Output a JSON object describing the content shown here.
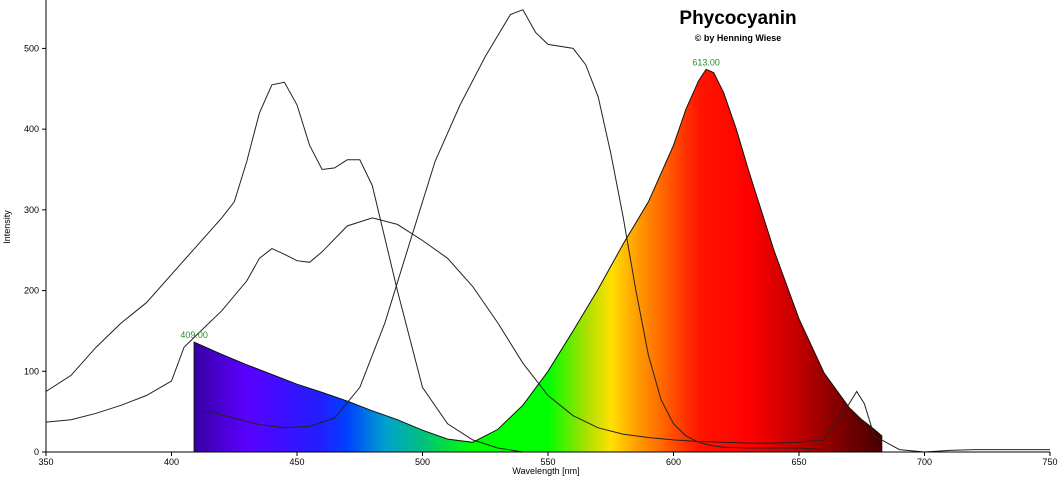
{
  "chart_data": {
    "type": "area",
    "title": "Phycocyanin",
    "subtitle": "© by Henning Wiese",
    "xlabel": "Wavelength [nm]",
    "ylabel": "Intensity",
    "xlim": [
      350,
      750
    ],
    "ylim": [
      0,
      560
    ],
    "x_ticks": [
      350,
      400,
      450,
      500,
      550,
      600,
      650,
      700,
      750
    ],
    "y_ticks": [
      0,
      100,
      200,
      300,
      400,
      500
    ],
    "grid": false,
    "annotations": [
      {
        "text": "409.00",
        "x": 409,
        "y": 136
      },
      {
        "text": "613.00",
        "x": 613,
        "y": 474
      }
    ],
    "series": [
      {
        "kind": "filled-spectrum",
        "x": [
          409,
          412,
          420,
          430,
          440,
          450,
          460,
          470,
          480,
          490,
          500,
          510,
          520,
          530,
          540,
          550,
          560,
          570,
          580,
          590,
          600,
          605,
          610,
          613,
          616,
          620,
          625,
          630,
          640,
          650,
          660,
          670,
          675,
          680,
          683
        ],
        "y": [
          136,
          132,
          121,
          108,
          96,
          84,
          74,
          63,
          51,
          40,
          27,
          16,
          12,
          28,
          58,
          100,
          150,
          202,
          258,
          310,
          380,
          425,
          460,
          474,
          470,
          445,
          400,
          348,
          250,
          165,
          98,
          55,
          40,
          28,
          20
        ]
      },
      {
        "kind": "line",
        "x": [
          350,
          360,
          370,
          380,
          390,
          400,
          410,
          420,
          425,
          430,
          435,
          440,
          445,
          450,
          455,
          460,
          465,
          470,
          475,
          480,
          490,
          500,
          510,
          520,
          530,
          540
        ],
        "y": [
          75,
          95,
          130,
          160,
          185,
          220,
          255,
          290,
          310,
          360,
          420,
          455,
          458,
          430,
          380,
          350,
          352,
          362,
          362,
          330,
          200,
          80,
          35,
          15,
          5,
          0
        ]
      },
      {
        "kind": "line",
        "x": [
          350,
          360,
          370,
          380,
          390,
          400,
          405,
          410,
          420,
          430,
          435,
          440,
          445,
          450,
          455,
          460,
          470,
          480,
          490,
          500,
          510,
          520,
          530,
          540,
          550,
          560,
          570,
          580,
          590,
          600,
          610,
          620,
          630,
          640,
          650,
          660,
          670,
          673,
          676,
          680,
          690,
          700,
          710,
          720,
          750
        ],
        "y": [
          37,
          40,
          48,
          58,
          70,
          88,
          130,
          145,
          175,
          212,
          240,
          252,
          245,
          237,
          235,
          248,
          280,
          290,
          282,
          262,
          240,
          205,
          160,
          110,
          70,
          45,
          30,
          22,
          18,
          15,
          13,
          12,
          11,
          11,
          12,
          15,
          60,
          75,
          60,
          20,
          3,
          0,
          2,
          3,
          3
        ]
      },
      {
        "kind": "line",
        "x": [
          412,
          415,
          425,
          435,
          445,
          455,
          465,
          475,
          485,
          495,
          505,
          515,
          525,
          535,
          540,
          545,
          550,
          560,
          565,
          570,
          575,
          580,
          585,
          590,
          595,
          600,
          605,
          610,
          615,
          620,
          630,
          640,
          650,
          660
        ],
        "y": [
          50,
          50,
          42,
          34,
          30,
          32,
          42,
          80,
          160,
          260,
          360,
          430,
          490,
          542,
          548,
          520,
          505,
          500,
          480,
          440,
          370,
          290,
          200,
          120,
          65,
          35,
          20,
          12,
          8,
          6,
          5,
          5,
          5,
          3
        ]
      }
    ]
  }
}
